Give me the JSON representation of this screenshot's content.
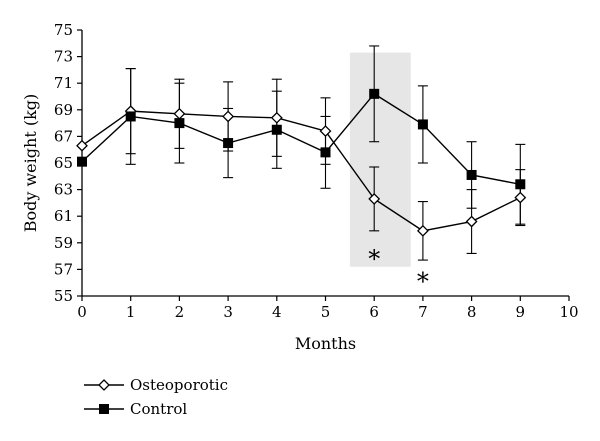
{
  "chart_data": {
    "type": "line",
    "xlabel": "Months",
    "ylabel": "Body weight (kg)",
    "xlim": [
      0,
      10
    ],
    "ylim": [
      55,
      75
    ],
    "xticks": [
      0,
      1,
      2,
      3,
      4,
      5,
      6,
      7,
      8,
      9,
      10
    ],
    "yticks": [
      55,
      57,
      59,
      61,
      63,
      65,
      67,
      69,
      71,
      73,
      75
    ],
    "grid": false,
    "legend_position": "bottom-left",
    "highlight_band": {
      "x": [
        5.5,
        6.75
      ],
      "y": [
        57.2,
        73.3
      ],
      "color": "#e6e6e6"
    },
    "series": [
      {
        "name": "Osteoporotic",
        "marker": "open-diamond",
        "x": [
          0,
          1,
          2,
          3,
          4,
          5,
          6,
          7,
          8,
          9
        ],
        "values": [
          66.3,
          68.9,
          68.7,
          68.5,
          68.4,
          67.4,
          62.3,
          59.9,
          60.6,
          62.4
        ],
        "error": [
          0,
          3.2,
          2.6,
          2.6,
          2.9,
          2.5,
          2.4,
          2.2,
          2.4,
          2.1
        ]
      },
      {
        "name": "Control",
        "marker": "filled-square",
        "x": [
          0,
          1,
          2,
          3,
          4,
          5,
          6,
          7,
          8,
          9
        ],
        "values": [
          65.1,
          68.5,
          68.0,
          66.5,
          67.5,
          65.8,
          70.2,
          67.9,
          64.1,
          63.4
        ],
        "error": [
          0,
          3.6,
          3.0,
          2.6,
          2.9,
          2.7,
          3.6,
          2.9,
          2.5,
          3.0
        ]
      }
    ],
    "annotations": [
      {
        "text": "*",
        "x": 6,
        "y": 58.1
      },
      {
        "text": "*",
        "x": 7,
        "y": 56.4
      }
    ]
  }
}
